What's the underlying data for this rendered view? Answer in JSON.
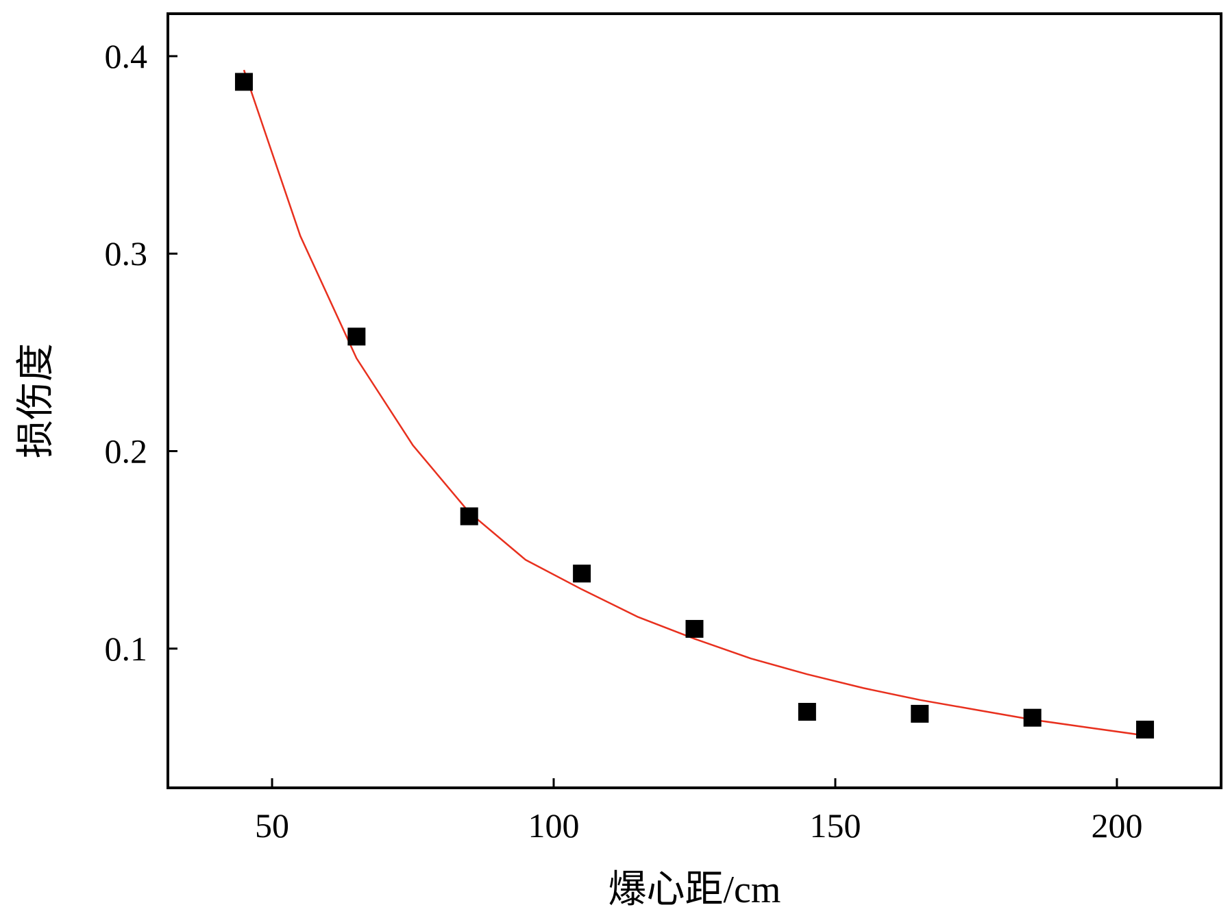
{
  "chart_data": {
    "type": "scatter",
    "title": "",
    "xlabel": "爆心距/cm",
    "ylabel": "损伤度",
    "xlim": [
      31.5,
      218.5
    ],
    "ylim": [
      0.0295,
      0.4215
    ],
    "xticks": [
      50,
      100,
      150,
      200
    ],
    "yticks": [
      0.1,
      0.2,
      0.3,
      0.4
    ],
    "x_tick_labels": [
      "50",
      "100",
      "150",
      "200"
    ],
    "y_tick_labels": [
      "0.1",
      "0.2",
      "0.3",
      "0.4"
    ],
    "grid": false,
    "legend": "none",
    "series": [
      {
        "kind": "scatter",
        "marker": "square",
        "color": "#000000",
        "x": [
          45,
          65,
          85,
          105,
          125,
          145,
          165,
          185,
          205
        ],
        "y": [
          0.387,
          0.258,
          0.167,
          0.138,
          0.11,
          0.068,
          0.067,
          0.065,
          0.059
        ]
      },
      {
        "kind": "fit-line",
        "color": "#e8301e",
        "x": [
          45,
          55,
          65,
          75,
          85,
          95,
          105,
          115,
          125,
          135,
          145,
          155,
          165,
          175,
          185,
          195,
          205
        ],
        "y": [
          0.393,
          0.309,
          0.247,
          0.203,
          0.169,
          0.145,
          0.13,
          0.116,
          0.105,
          0.095,
          0.087,
          0.08,
          0.074,
          0.069,
          0.064,
          0.06,
          0.056
        ]
      }
    ]
  }
}
